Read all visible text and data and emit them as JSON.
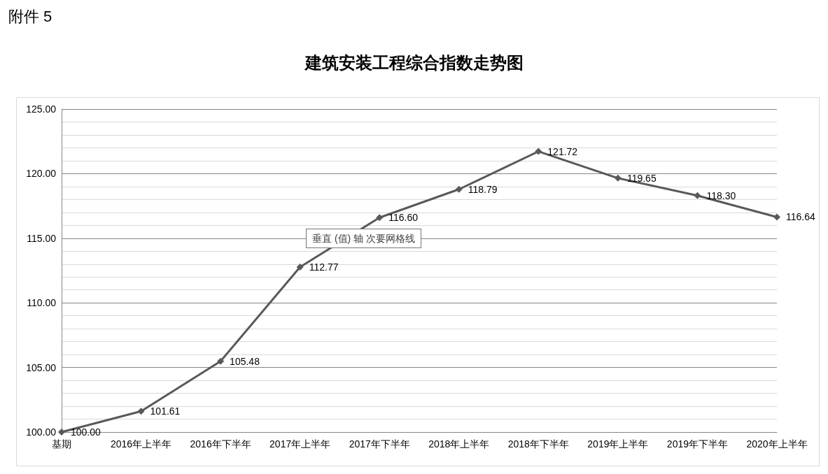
{
  "chart_data": {
    "type": "line",
    "title": "建筑安装工程综合指数走势图",
    "annotations": [
      "附件 5",
      "垂直 (值) 轴 次要网格线"
    ],
    "categories": [
      "基期",
      "2016年上半年",
      "2016年下半年",
      "2017年上半年",
      "2017年下半年",
      "2018年上半年",
      "2018年下半年",
      "2019年上半年",
      "2019年下半年",
      "2020年上半年"
    ],
    "series": [
      {
        "color": "#595959",
        "values": [
          100.0,
          101.61,
          105.48,
          112.77,
          116.6,
          118.79,
          121.72,
          119.65,
          118.3,
          116.64
        ],
        "value_labels": [
          "100.00",
          "101.61",
          "105.48",
          "112.77",
          "116.60",
          "118.79",
          "121.72",
          "119.65",
          "118.30",
          "116.64"
        ]
      }
    ],
    "ylim": [
      100,
      125
    ],
    "yticks": [
      {
        "value": 100,
        "label": "100.00"
      },
      {
        "value": 105,
        "label": "105.00"
      },
      {
        "value": 110,
        "label": "110.00"
      },
      {
        "value": 115,
        "label": "115.00"
      },
      {
        "value": 120,
        "label": "120.00"
      },
      {
        "value": 125,
        "label": "125.00"
      }
    ],
    "grid": "y",
    "marker": "diamond",
    "line_style": "solid"
  }
}
